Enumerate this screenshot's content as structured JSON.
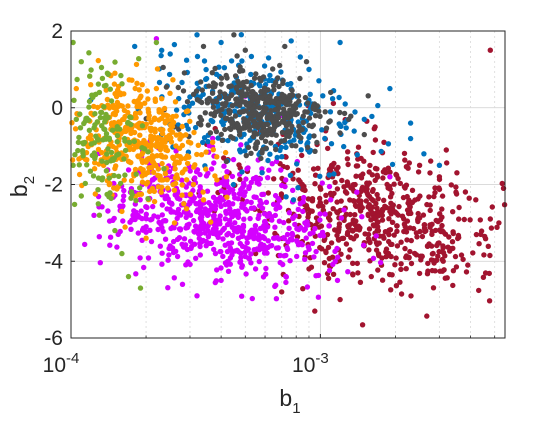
{
  "chart_data": {
    "type": "scatter",
    "title": "",
    "xlabel": {
      "base": "b",
      "sub": "1"
    },
    "ylabel": {
      "base": "b",
      "sub": "2"
    },
    "xscale": "log",
    "xlim": [
      0.0001,
      0.0055
    ],
    "ylim": [
      -6,
      2
    ],
    "xticks": [
      {
        "value": 0.0001,
        "base": "10",
        "exp": "-4"
      },
      {
        "value": 0.001,
        "base": "10",
        "exp": "-3"
      }
    ],
    "yticks": [
      {
        "value": 2,
        "label": "2"
      },
      {
        "value": 0,
        "label": "0"
      },
      {
        "value": -2,
        "label": "-2"
      },
      {
        "value": -4,
        "label": "-4"
      },
      {
        "value": -6,
        "label": "-6"
      }
    ],
    "grid": true,
    "legend": "none",
    "colors": {
      "axis": "#262626",
      "grid": "#cfcfcf"
    },
    "series": [
      {
        "color": "#a2142f",
        "cluster": {
          "log10_x_mean": -2.78,
          "log10_x_sd": 0.25,
          "y_mean": -2.8,
          "y_sd": 0.95,
          "corr": -0.35
        },
        "points": [
          [
            0.00105,
            -0.6
          ],
          [
            0.0014,
            -1.2
          ],
          [
            0.0018,
            -0.9
          ],
          [
            0.0025,
            -1.5
          ],
          [
            0.003,
            -1.8
          ],
          [
            0.0035,
            -2.2
          ],
          [
            0.0042,
            -2.4
          ],
          [
            0.0048,
            -2.9
          ],
          [
            0.0052,
            -3.0
          ],
          [
            0.0048,
            1.5
          ],
          [
            0.0036,
            -2.6
          ],
          [
            0.0028,
            -3.3
          ],
          [
            0.0022,
            -3.9
          ],
          [
            0.0016,
            -4.4
          ],
          [
            0.0012,
            -5.0
          ],
          [
            0.00095,
            -5.3
          ],
          [
            0.0007,
            -4.8
          ],
          [
            0.00055,
            -3.8
          ],
          [
            0.0006,
            -0.1
          ],
          [
            0.0009,
            -4.2
          ],
          [
            0.0013,
            -3.1
          ],
          [
            0.0019,
            -2.7
          ],
          [
            0.0031,
            -3.6
          ],
          [
            0.0039,
            -4.1
          ],
          [
            0.0044,
            -3.3
          ],
          [
            0.0032,
            -1.1
          ]
        ]
      },
      {
        "color": "#d400ff",
        "cluster": {
          "log10_x_mean": -3.4,
          "log10_x_sd": 0.22,
          "y_mean": -2.9,
          "y_sd": 0.75,
          "corr": -0.3
        },
        "points": [
          [
            0.00016,
            -2.6
          ],
          [
            0.0002,
            -3.1
          ],
          [
            0.00025,
            -3.6
          ],
          [
            0.00028,
            -4.6
          ],
          [
            0.00032,
            -4.9
          ],
          [
            0.0004,
            -4.5
          ],
          [
            0.00048,
            -3.9
          ],
          [
            0.00055,
            -4.2
          ],
          [
            0.00065,
            -3.4
          ],
          [
            0.00085,
            -2.7
          ],
          [
            0.0011,
            -2.4
          ],
          [
            0.0014,
            -2.2
          ],
          [
            0.0019,
            -1.8
          ],
          [
            0.00022,
            1.8
          ],
          [
            0.00037,
            -0.8
          ],
          [
            0.0005,
            0.3
          ],
          [
            0.0007,
            -0.2
          ]
        ]
      },
      {
        "color": "#0072bd",
        "cluster": {
          "log10_x_mean": -3.25,
          "log10_x_sd": 0.2,
          "y_mean": -0.2,
          "y_sd": 0.7,
          "corr": -0.4
        },
        "points": [
          [
            0.00018,
            1.6
          ],
          [
            0.00025,
            1.4
          ],
          [
            0.00032,
            1.9
          ],
          [
            0.0004,
            1.7
          ],
          [
            0.00062,
            1.3
          ],
          [
            0.0009,
            1.0
          ],
          [
            0.0012,
            1.7
          ],
          [
            0.0015,
            -0.3
          ],
          [
            0.0019,
            0.5
          ],
          [
            0.0023,
            -0.4
          ],
          [
            0.0026,
            -1.2
          ],
          [
            0.003,
            -1.5
          ],
          [
            0.00078,
            -2.4
          ],
          [
            0.00012,
            0.2
          ]
        ]
      },
      {
        "color": "#4d4d4d",
        "cluster": {
          "log10_x_mean": -3.25,
          "log10_x_sd": 0.14,
          "y_mean": -0.1,
          "y_sd": 0.55,
          "corr": -0.2
        },
        "points": [
          [
            0.00034,
            1.6
          ],
          [
            0.00045,
            1.9
          ],
          [
            0.0005,
            1.5
          ],
          [
            0.00072,
            1.6
          ],
          [
            0.00088,
            1.2
          ],
          [
            0.0011,
            0.4
          ],
          [
            0.0013,
            -0.3
          ],
          [
            0.0015,
            -0.7
          ],
          [
            0.00042,
            -1.4
          ],
          [
            0.00026,
            -0.5
          ]
        ]
      },
      {
        "color": "#ff9900",
        "cluster": {
          "log10_x_mean": -3.72,
          "log10_x_sd": 0.13,
          "y_mean": -0.9,
          "y_sd": 0.75,
          "corr": -0.3
        },
        "points": [
          [
            0.000105,
            0.5
          ],
          [
            0.00012,
            0.6
          ],
          [
            0.00015,
            0.9
          ],
          [
            0.00022,
            0.5
          ],
          [
            0.00029,
            -0.1
          ],
          [
            0.00037,
            -0.9
          ],
          [
            0.00042,
            -1.8
          ],
          [
            0.00034,
            -2.4
          ],
          [
            0.00026,
            -3.0
          ],
          [
            0.0002,
            -3.4
          ],
          [
            0.00016,
            -2.7
          ],
          [
            0.00014,
            -1.9
          ],
          [
            0.00011,
            -1.3
          ]
        ]
      },
      {
        "color": "#77ac30",
        "cluster": {
          "log10_x_mean": -3.88,
          "log10_x_sd": 0.08,
          "y_mean": -0.7,
          "y_sd": 0.85,
          "corr": -0.2
        },
        "points": [
          [
            0.000102,
            1.7
          ],
          [
            0.00011,
            1.2
          ],
          [
            0.00014,
            0.9
          ],
          [
            0.00013,
            0.4
          ],
          [
            0.000105,
            -0.3
          ],
          [
            0.000102,
            -1.5
          ],
          [
            0.00011,
            -2.3
          ],
          [
            0.00013,
            -2.8
          ],
          [
            0.00015,
            -3.2
          ],
          [
            0.00017,
            -4.4
          ],
          [
            0.00019,
            -4.7
          ],
          [
            0.00022,
            1.7
          ],
          [
            0.00016,
            -3.8
          ]
        ]
      }
    ]
  }
}
